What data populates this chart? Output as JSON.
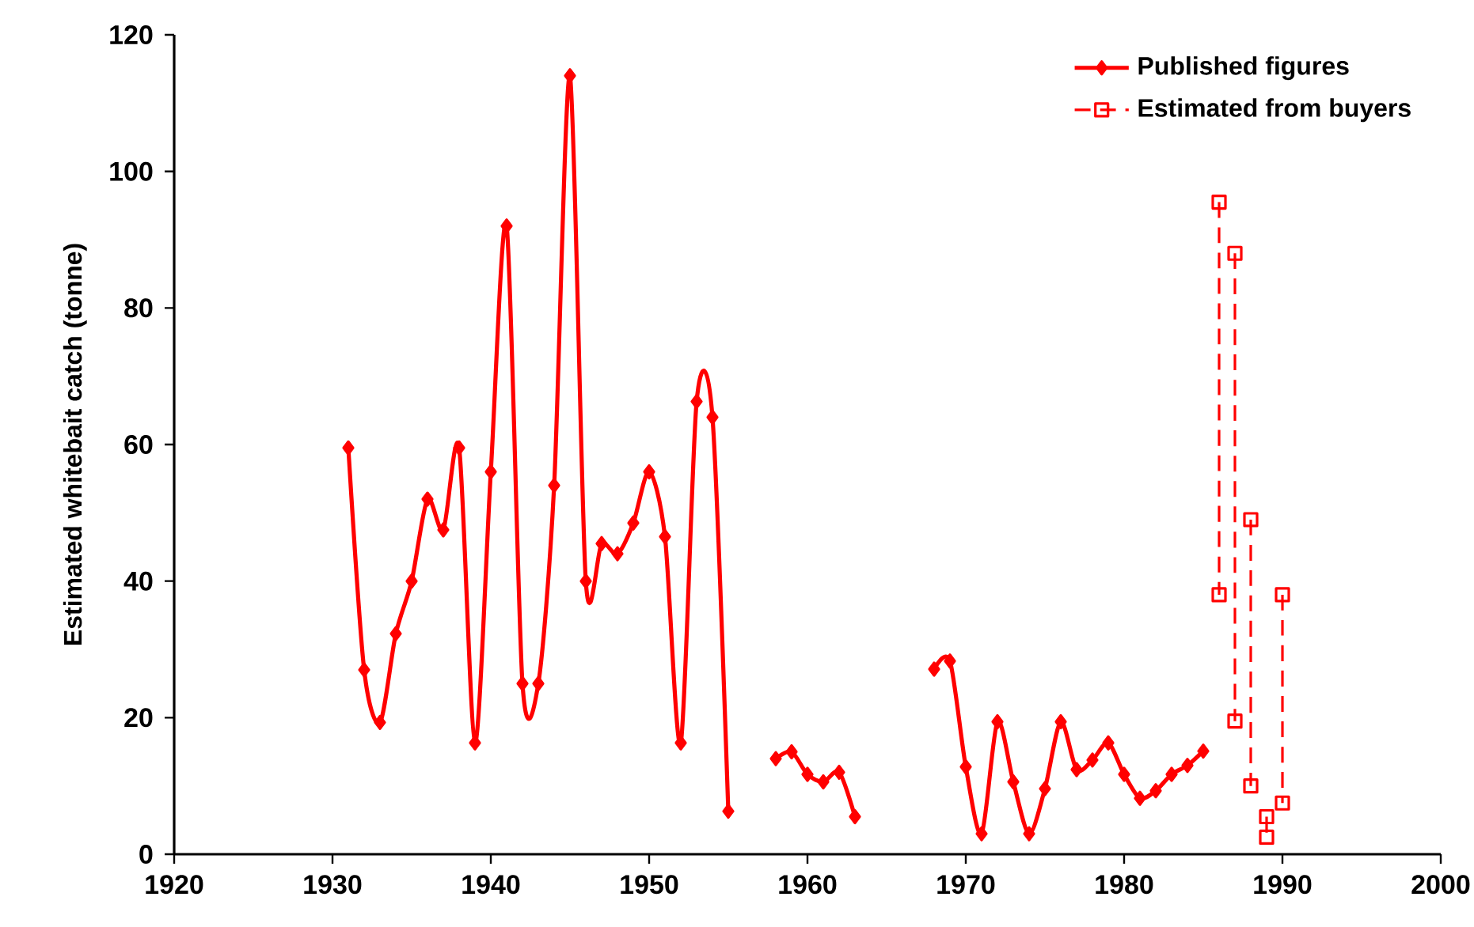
{
  "chart_data": {
    "type": "line",
    "ylabel": "Estimated whitebait catch (tonne)",
    "xlim": [
      1920,
      2000
    ],
    "ylim": [
      0,
      120
    ],
    "xticks": [
      1920,
      1930,
      1940,
      1950,
      1960,
      1970,
      1980,
      1990,
      2000
    ],
    "yticks": [
      0,
      20,
      40,
      60,
      80,
      100,
      120
    ],
    "grid": false,
    "legend": "top right",
    "series": [
      {
        "name": "Published figures",
        "color": "#ff0000",
        "marker": "diamond",
        "line_style": "solid",
        "x": [
          1931,
          1932,
          1933,
          1934,
          1935,
          1936,
          1937,
          1938,
          1939,
          1940,
          1941,
          1942,
          1943,
          1944,
          1945,
          1946,
          1947,
          1948,
          1949,
          1950,
          1951,
          1952,
          1953,
          1954,
          1955,
          1956,
          1957,
          1958,
          1959,
          1960,
          1961,
          1962,
          1963,
          1964,
          1965,
          1966,
          1967,
          1968,
          1969,
          1970,
          1971,
          1972,
          1973,
          1974,
          1975,
          1976,
          1977,
          1978,
          1979,
          1980,
          1981,
          1982,
          1983,
          1984,
          1985
        ],
        "values": [
          59.5,
          27,
          19.3,
          32.3,
          40,
          52,
          47.5,
          59.5,
          16.3,
          56,
          92,
          25,
          25,
          54,
          114,
          40,
          45.5,
          44,
          48.5,
          56,
          46.5,
          16.3,
          66.3,
          64,
          6.3,
          null,
          null,
          14,
          15,
          11.7,
          10.6,
          12,
          5.5,
          null,
          null,
          null,
          null,
          27.1,
          28.3,
          12.8,
          3,
          19.4,
          10.6,
          3,
          9.6,
          19.4,
          12.4,
          13.8,
          16.3,
          11.7,
          8.2,
          9.3,
          11.7,
          13,
          15.1
        ]
      },
      {
        "name": "Estimated from buyers",
        "color": "#ff0000",
        "marker": "square",
        "line_style": "dashed",
        "x": [
          1986,
          1986,
          1986.5,
          1987,
          1987,
          1987.5,
          1988,
          1988,
          1988.5,
          1989,
          1989,
          1989.5,
          1990,
          1990
        ],
        "values": [
          95.5,
          38,
          null,
          88,
          19.5,
          null,
          49,
          10,
          null,
          5.5,
          2.5,
          null,
          38,
          7.5
        ]
      }
    ]
  }
}
